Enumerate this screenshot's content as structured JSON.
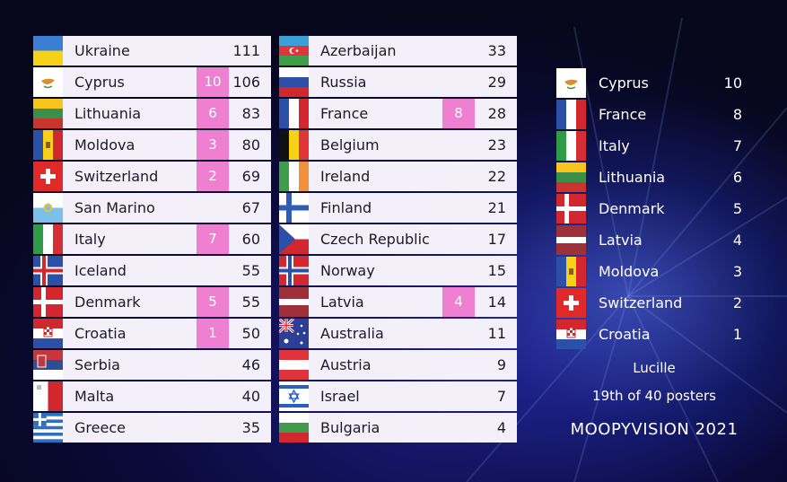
{
  "scoreboard": {
    "column_left": [
      {
        "country": "Ukraine",
        "points_given": "",
        "total": "111",
        "flag": "ukraine-flag"
      },
      {
        "country": "Cyprus",
        "points_given": "10",
        "total": "106",
        "flag": "cyprus-flag"
      },
      {
        "country": "Lithuania",
        "points_given": "6",
        "total": "83",
        "flag": "lithuania-flag"
      },
      {
        "country": "Moldova",
        "points_given": "3",
        "total": "80",
        "flag": "moldova-flag"
      },
      {
        "country": "Switzerland",
        "points_given": "2",
        "total": "69",
        "flag": "switzerland-flag"
      },
      {
        "country": "San Marino",
        "points_given": "",
        "total": "67",
        "flag": "san-marino-flag"
      },
      {
        "country": "Italy",
        "points_given": "7",
        "total": "60",
        "flag": "italy-flag"
      },
      {
        "country": "Iceland",
        "points_given": "",
        "total": "55",
        "flag": "iceland-flag"
      },
      {
        "country": "Denmark",
        "points_given": "5",
        "total": "55",
        "flag": "denmark-flag"
      },
      {
        "country": "Croatia",
        "points_given": "1",
        "total": "50",
        "flag": "croatia-flag"
      },
      {
        "country": "Serbia",
        "points_given": "",
        "total": "46",
        "flag": "serbia-flag"
      },
      {
        "country": "Malta",
        "points_given": "",
        "total": "40",
        "flag": "malta-flag"
      },
      {
        "country": "Greece",
        "points_given": "",
        "total": "35",
        "flag": "greece-flag"
      }
    ],
    "column_right": [
      {
        "country": "Azerbaijan",
        "points_given": "",
        "total": "33",
        "flag": "azerbaijan-flag"
      },
      {
        "country": "Russia",
        "points_given": "",
        "total": "29",
        "flag": "russia-flag"
      },
      {
        "country": "France",
        "points_given": "8",
        "total": "28",
        "flag": "france-flag"
      },
      {
        "country": "Belgium",
        "points_given": "",
        "total": "23",
        "flag": "belgium-flag"
      },
      {
        "country": "Ireland",
        "points_given": "",
        "total": "22",
        "flag": "ireland-flag"
      },
      {
        "country": "Finland",
        "points_given": "",
        "total": "21",
        "flag": "finland-flag"
      },
      {
        "country": "Czech Republic",
        "points_given": "",
        "total": "17",
        "flag": "czech-flag"
      },
      {
        "country": "Norway",
        "points_given": "",
        "total": "15",
        "flag": "norway-flag"
      },
      {
        "country": "Latvia",
        "points_given": "4",
        "total": "14",
        "flag": "latvia-flag"
      },
      {
        "country": "Australia",
        "points_given": "",
        "total": "11",
        "flag": "australia-flag"
      },
      {
        "country": "Austria",
        "points_given": "",
        "total": "9",
        "flag": "austria-flag"
      },
      {
        "country": "Israel",
        "points_given": "",
        "total": "7",
        "flag": "israel-flag"
      },
      {
        "country": "Bulgaria",
        "points_given": "",
        "total": "4",
        "flag": "bulgaria-flag"
      }
    ]
  },
  "votes_panel": {
    "items": [
      {
        "country": "Cyprus",
        "points": "10",
        "flag": "cyprus-flag"
      },
      {
        "country": "France",
        "points": "8",
        "flag": "france-flag"
      },
      {
        "country": "Italy",
        "points": "7",
        "flag": "italy-flag"
      },
      {
        "country": "Lithuania",
        "points": "6",
        "flag": "lithuania-flag"
      },
      {
        "country": "Denmark",
        "points": "5",
        "flag": "denmark-flag"
      },
      {
        "country": "Latvia",
        "points": "4",
        "flag": "latvia-flag"
      },
      {
        "country": "Moldova",
        "points": "3",
        "flag": "moldova-flag"
      },
      {
        "country": "Switzerland",
        "points": "2",
        "flag": "switzerland-flag"
      },
      {
        "country": "Croatia",
        "points": "1",
        "flag": "croatia-flag"
      }
    ],
    "voter_name": "Lucille",
    "voter_rank": "19th of 40 posters",
    "event_title": "MOOPYVISION 2021"
  },
  "colors": {
    "row_background": "#f4f0fa",
    "points_badge": "#ef7fd0",
    "text_dark": "#1a1a2a",
    "text_light": "#ffffff",
    "background": "#07071c"
  }
}
